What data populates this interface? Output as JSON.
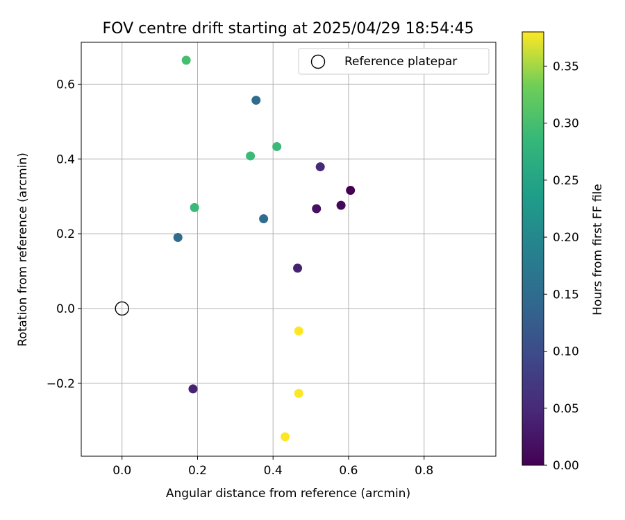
{
  "chart_data": {
    "type": "scatter",
    "title": "FOV centre drift starting at 2025/04/29 18:54:45",
    "xlabel": "Angular distance from reference (arcmin)",
    "ylabel": "Rotation from reference (arcmin)",
    "xlim": [
      -0.108,
      0.99
    ],
    "ylim": [
      -0.395,
      0.712
    ],
    "xticks": [
      0.0,
      0.2,
      0.4,
      0.6,
      0.8
    ],
    "xtick_labels": [
      "0.0",
      "0.2",
      "0.4",
      "0.6",
      "0.8"
    ],
    "yticks": [
      -0.2,
      0.0,
      0.2,
      0.4,
      0.6
    ],
    "ytick_labels": [
      "−0.2",
      "0.0",
      "0.2",
      "0.4",
      "0.6"
    ],
    "grid": true,
    "legend": {
      "placement": "upper right",
      "entries": [
        {
          "label": "Reference platepar",
          "marker": "open-circle"
        }
      ]
    },
    "reference_point": {
      "x": 0.0,
      "y": 0.0
    },
    "colormap": "viridis",
    "colorbar": {
      "label": "Hours from first FF file",
      "range": [
        0.0,
        0.38
      ],
      "ticks": [
        0.0,
        0.05,
        0.1,
        0.15,
        0.2,
        0.25,
        0.3,
        0.35
      ],
      "tick_labels": [
        "0.00",
        "0.05",
        "0.10",
        "0.15",
        "0.20",
        "0.25",
        "0.30",
        "0.35"
      ]
    },
    "points": [
      {
        "x": 0.605,
        "y": 0.316,
        "hours": 0.0
      },
      {
        "x": 0.58,
        "y": 0.276,
        "hours": 0.01
      },
      {
        "x": 0.515,
        "y": 0.267,
        "hours": 0.02
      },
      {
        "x": 0.465,
        "y": 0.108,
        "hours": 0.04
      },
      {
        "x": 0.525,
        "y": 0.379,
        "hours": 0.05
      },
      {
        "x": 0.188,
        "y": -0.215,
        "hours": 0.04
      },
      {
        "x": 0.148,
        "y": 0.19,
        "hours": 0.15
      },
      {
        "x": 0.375,
        "y": 0.24,
        "hours": 0.15
      },
      {
        "x": 0.355,
        "y": 0.557,
        "hours": 0.15
      },
      {
        "x": 0.192,
        "y": 0.27,
        "hours": 0.29
      },
      {
        "x": 0.34,
        "y": 0.408,
        "hours": 0.29
      },
      {
        "x": 0.41,
        "y": 0.433,
        "hours": 0.29
      },
      {
        "x": 0.17,
        "y": 0.664,
        "hours": 0.3
      },
      {
        "x": 0.468,
        "y": -0.06,
        "hours": 0.38
      },
      {
        "x": 0.468,
        "y": -0.227,
        "hours": 0.38
      },
      {
        "x": 0.432,
        "y": -0.343,
        "hours": 0.38
      }
    ]
  }
}
